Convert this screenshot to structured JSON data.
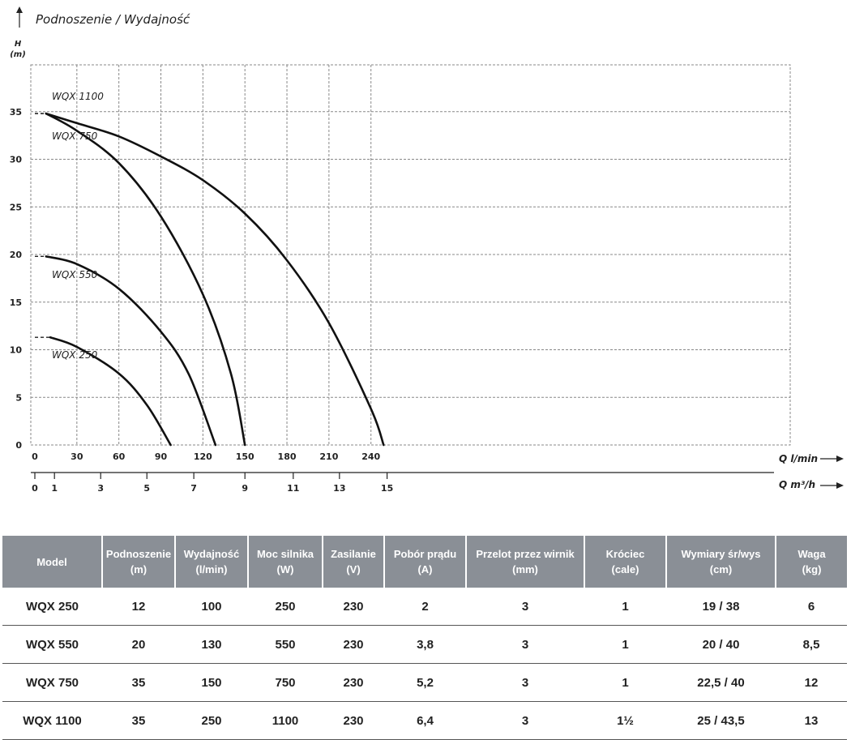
{
  "chart_data": {
    "type": "line",
    "title": "Podnoszenie / Wydajność",
    "ylabel": "H",
    "yunit": "(m)",
    "ylim": [
      0,
      40
    ],
    "yticks": [
      "0",
      "5",
      "10",
      "15",
      "20",
      "25",
      "30",
      "35"
    ],
    "x_primary": {
      "label": "Q l/min",
      "xlim": [
        0,
        270
      ],
      "ticks": [
        "0",
        "30",
        "60",
        "90",
        "120",
        "150",
        "180",
        "210",
        "240"
      ]
    },
    "x_secondary": {
      "label": "Q m³/h",
      "ticks": [
        {
          "label": "0",
          "q_lmin": 0
        },
        {
          "label": "1",
          "q_lmin": 14
        },
        {
          "label": "3",
          "q_lmin": 47
        },
        {
          "label": "5",
          "q_lmin": 80
        },
        {
          "label": "7",
          "q_lmin": 113.5
        },
        {
          "label": "9",
          "q_lmin": 150
        },
        {
          "label": "11",
          "q_lmin": 184.5
        },
        {
          "label": "13",
          "q_lmin": 217.5
        },
        {
          "label": "15",
          "q_lmin": 251.5
        }
      ]
    },
    "grid": true,
    "series": [
      {
        "name": "WQX 1100",
        "dashed_until": 8,
        "x": [
          0,
          8,
          30,
          60,
          90,
          120,
          150,
          180,
          210,
          240,
          249
        ],
        "y": [
          34.8,
          34.8,
          33.8,
          32.4,
          30.3,
          27.8,
          24.3,
          19.4,
          12.8,
          3.8,
          0
        ]
      },
      {
        "name": "WQX 750",
        "dashed_until": 8,
        "x": [
          0,
          8,
          30,
          60,
          90,
          120,
          140,
          150
        ],
        "y": [
          34.8,
          34.8,
          33.0,
          29.6,
          24.0,
          15.8,
          7.5,
          0
        ]
      },
      {
        "name": "WQX 550",
        "dashed_until": 8,
        "x": [
          0,
          8,
          30,
          60,
          90,
          110,
          129
        ],
        "y": [
          19.8,
          19.8,
          19.0,
          16.4,
          11.9,
          7.4,
          0
        ]
      },
      {
        "name": "WQX 250",
        "dashed_until": 11,
        "x": [
          0,
          11,
          30,
          60,
          80,
          97
        ],
        "y": [
          11.3,
          11.3,
          10.3,
          7.5,
          4.2,
          0
        ]
      }
    ]
  },
  "table": {
    "headers": [
      [
        "Model"
      ],
      [
        "Podnoszenie",
        "(m)"
      ],
      [
        "Wydajność",
        "(l/min)"
      ],
      [
        "Moc silnika",
        "(W)"
      ],
      [
        "Zasilanie",
        "(V)"
      ],
      [
        "Pobór prądu",
        "(A)"
      ],
      [
        "Przelot przez wirnik",
        "(mm)"
      ],
      [
        "Króciec",
        "(cale)"
      ],
      [
        "Wymiary śr/wys",
        "(cm)"
      ],
      [
        "Waga",
        "(kg)"
      ]
    ],
    "rows": [
      [
        "WQX 250",
        "12",
        "100",
        "250",
        "230",
        "2",
        "3",
        "1",
        "19 / 38",
        "6"
      ],
      [
        "WQX 550",
        "20",
        "130",
        "550",
        "230",
        "3,8",
        "3",
        "1",
        "20 / 40",
        "8,5"
      ],
      [
        "WQX 750",
        "35",
        "150",
        "750",
        "230",
        "5,2",
        "3",
        "1",
        "22,5 / 40",
        "12"
      ],
      [
        "WQX 1100",
        "35",
        "250",
        "1100",
        "230",
        "6,4",
        "3",
        "1½",
        "25 / 43,5",
        "13"
      ]
    ]
  }
}
